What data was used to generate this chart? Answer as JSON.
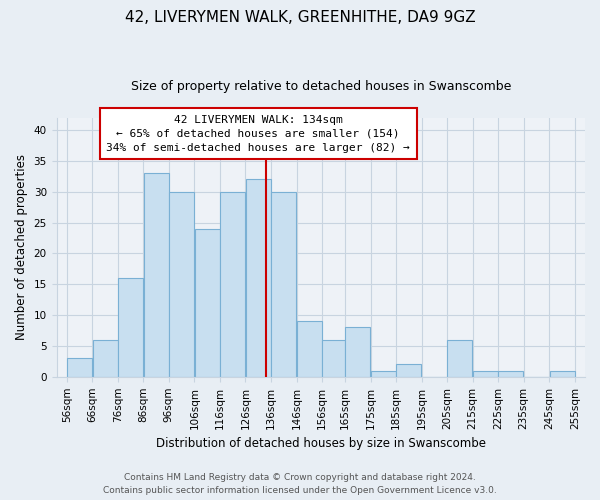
{
  "title": "42, LIVERYMEN WALK, GREENHITHE, DA9 9GZ",
  "subtitle": "Size of property relative to detached houses in Swanscombe",
  "xlabel": "Distribution of detached houses by size in Swanscombe",
  "ylabel": "Number of detached properties",
  "bar_edges": [
    56,
    66,
    76,
    86,
    96,
    106,
    116,
    126,
    136,
    146,
    156,
    165,
    175,
    185,
    195,
    205,
    215,
    225,
    235,
    245,
    255
  ],
  "bar_heights": [
    3,
    6,
    16,
    33,
    30,
    24,
    30,
    32,
    30,
    9,
    6,
    8,
    1,
    2,
    0,
    6,
    1,
    1,
    0,
    1
  ],
  "bar_color": "#c8dff0",
  "bar_edge_color": "#7ab0d4",
  "reference_line_x": 134,
  "reference_line_color": "#cc0000",
  "ylim": [
    0,
    42
  ],
  "yticks": [
    0,
    5,
    10,
    15,
    20,
    25,
    30,
    35,
    40
  ],
  "annotation_title": "42 LIVERYMEN WALK: 134sqm",
  "annotation_line1": "← 65% of detached houses are smaller (154)",
  "annotation_line2": "34% of semi-detached houses are larger (82) →",
  "footnote1": "Contains HM Land Registry data © Crown copyright and database right 2024.",
  "footnote2": "Contains public sector information licensed under the Open Government Licence v3.0.",
  "bg_color": "#e8eef4",
  "plot_bg_color": "#eef2f7",
  "grid_color": "#c8d4e0",
  "title_fontsize": 11,
  "subtitle_fontsize": 9,
  "axis_label_fontsize": 8.5,
  "tick_fontsize": 7.5,
  "footnote_fontsize": 6.5
}
